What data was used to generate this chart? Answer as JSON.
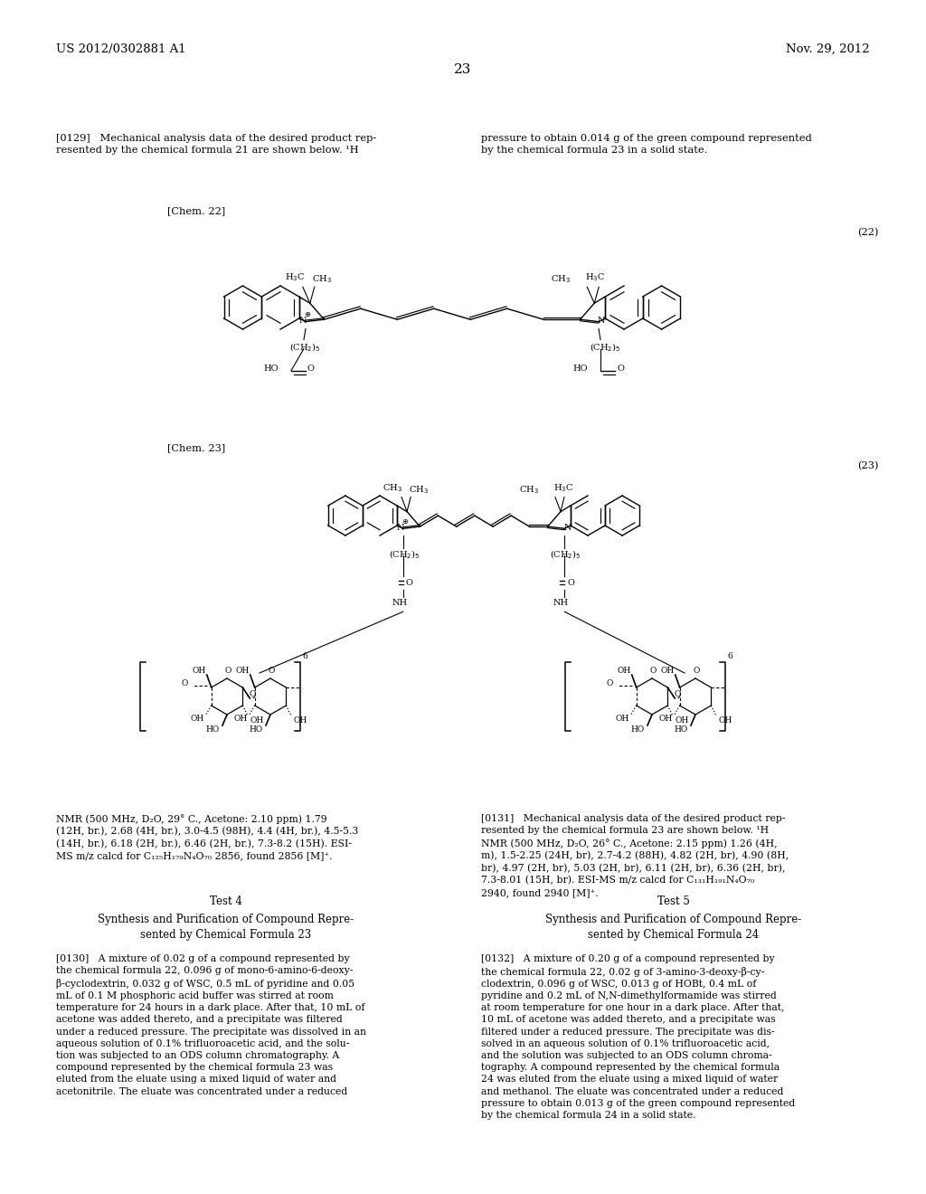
{
  "page_number": "23",
  "header_left": "US 2012/0302881 A1",
  "header_right": "Nov. 29, 2012",
  "bg": "#ffffff",
  "p129_left": "[0129]   Mechanical analysis data of the desired product rep-\nresented by the chemical formula 21 are shown below. ¹H",
  "p129_right": "pressure to obtain 0.014 g of the green compound represented\nby the chemical formula 23 in a solid state.",
  "chem22_label": "[Chem. 22]",
  "chem23_label": "[Chem. 23]",
  "num22": "(22)",
  "num23": "(23)",
  "nmr_left": "NMR (500 MHz, D₂O, 29° C., Acetone: 2.10 ppm) 1.79\n(12H, br.), 2.68 (4H, br.), 3.0-4.5 (98H), 4.4 (4H, br.), 4.5-5.3\n(14H, br.), 6.18 (2H, br.), 6.46 (2H, br.), 7.3-8.2 (15H). ESI-\nMS m/z calcd for C₁₂₅H₁₇₉N₄O₇₀ 2856, found 2856 [M]⁺.",
  "test4_title": "Test 4",
  "test4_sub": "Synthesis and Purification of Compound Repre-\nsented by Chemical Formula 23",
  "p130": "[0130]   A mixture of 0.02 g of a compound represented by\nthe chemical formula 22, 0.096 g of mono-6-amino-6-deoxy-\nβ-cyclodextrin, 0.032 g of WSC, 0.5 mL of pyridine and 0.05\nmL of 0.1 M phosphoric acid buffer was stirred at room\ntemperature for 24 hours in a dark place. After that, 10 mL of\nacetone was added thereto, and a precipitate was filtered\nunder a reduced pressure. The precipitate was dissolved in an\naqueous solution of 0.1% trifluoroacetic acid, and the solu-\ntion was subjected to an ODS column chromatography. A\ncompound represented by the chemical formula 23 was\neluted from the eluate using a mixed liquid of water and\nacetonitrile. The eluate was concentrated under a reduced",
  "nmr_right": "[0131]   Mechanical analysis data of the desired product rep-\nresented by the chemical formula 23 are shown below. ¹H\nNMR (500 MHz, D₂O, 26° C., Acetone: 2.15 ppm) 1.26 (4H,\nm), 1.5-2.25 (24H, br), 2.7-4.2 (88H), 4.82 (2H, br), 4.90 (8H,\nbr), 4.97 (2H, br), 5.03 (2H, br), 6.11 (2H, br), 6.36 (2H, br),\n7.3-8.01 (15H, br). ESI-MS m/z calcd for C₁₃₁H₁₉₁N₄O₇₀\n2940, found 2940 [M]⁺.",
  "test5_title": "Test 5",
  "test5_sub": "Synthesis and Purification of Compound Repre-\nsented by Chemical Formula 24",
  "p132": "[0132]   A mixture of 0.20 g of a compound represented by\nthe chemical formula 22, 0.02 g of 3-amino-3-deoxy-β-cy-\nclodextrin, 0.096 g of WSC, 0.013 g of HOBt, 0.4 mL of\npyridine and 0.2 mL of N,N-dimethylformamide was stirred\nat room temperature for one hour in a dark place. After that,\n10 mL of acetone was added thereto, and a precipitate was\nfiltered under a reduced pressure. The precipitate was dis-\nsolved in an aqueous solution of 0.1% trifluoroacetic acid,\nand the solution was subjected to an ODS column chroma-\ntography. A compound represented by the chemical formula\n24 was eluted from the eluate using a mixed liquid of water\nand methanol. The eluate was concentrated under a reduced\npressure to obtain 0.013 g of the green compound represented\nby the chemical formula 24 in a solid state."
}
